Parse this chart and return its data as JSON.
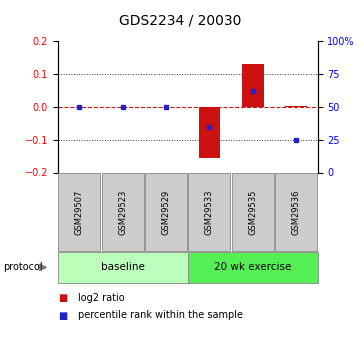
{
  "title": "GDS2234 / 20030",
  "samples": [
    "GSM29507",
    "GSM29523",
    "GSM29529",
    "GSM29533",
    "GSM29535",
    "GSM29536"
  ],
  "log2_ratio": [
    0.0,
    0.0,
    0.0,
    -0.155,
    0.13,
    0.002
  ],
  "percentile_rank": [
    50,
    50,
    50,
    35,
    62,
    25
  ],
  "ylim": [
    -0.2,
    0.2
  ],
  "yticks_left": [
    -0.2,
    -0.1,
    0.0,
    0.1,
    0.2
  ],
  "yticks_right_vals": [
    0,
    25,
    50,
    75,
    100
  ],
  "bar_color": "#cc1111",
  "dot_color": "#2222cc",
  "zero_line_color": "#cc1111",
  "grid_color": "#333333",
  "background_color": "#ffffff",
  "bar_width": 0.5,
  "baseline_color": "#bbffbb",
  "exercise_color": "#55ee55",
  "label_box_color": "#cccccc"
}
